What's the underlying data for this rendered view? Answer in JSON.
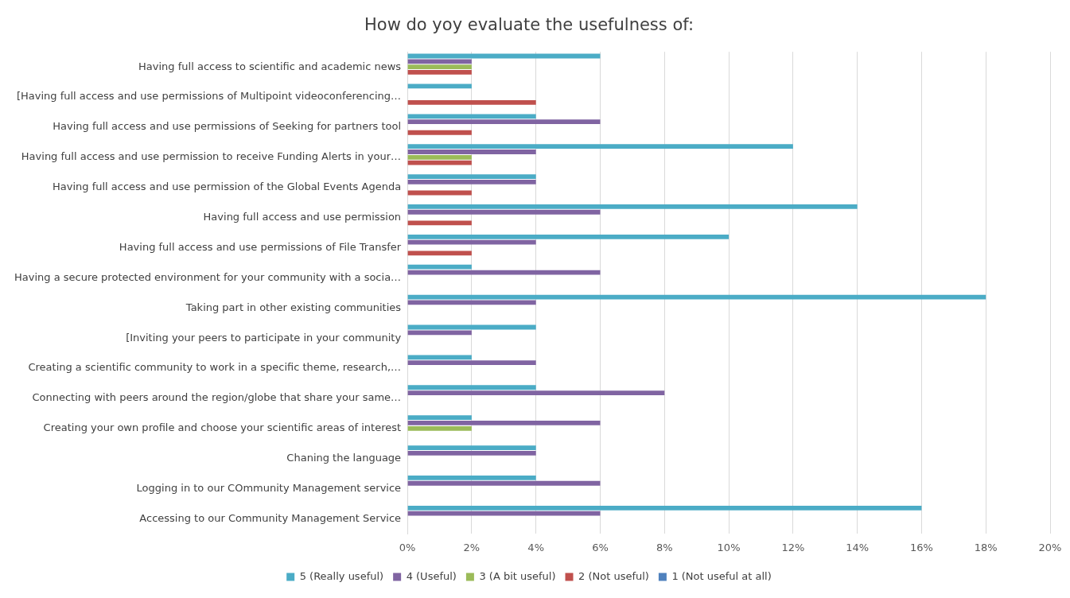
{
  "chart_data": {
    "type": "bar",
    "orientation": "horizontal",
    "title": "How do yoy evaluate the usefulness of:",
    "categories": [
      "Having full access to scientific and academic news",
      "[Having full access and use permissions of Multipoint videoconferencing…",
      "Having full access and use permissions of Seeking for partners tool",
      "Having full access and use permission to receive Funding Alerts in your…",
      "Having full access and use permission of the Global Events Agenda",
      "Having full access and use permission",
      "Having full access and use permissions of File Transfer",
      "Having a secure protected environment for your community with a socia…",
      "Taking part in other existing communities",
      "[Inviting your peers to participate in your community",
      "Creating a scientific community to work in a specific theme, research,…",
      "Connecting with peers around the region/globe that share your same…",
      "Creating your own profile and choose your scientific areas of interest",
      "Chaning the language",
      "Logging in to our COmmunity Management service",
      "Accessing to our Community Management Service"
    ],
    "series": [
      {
        "name": "5 (Really useful)",
        "color": "#4bacc6",
        "values": [
          6,
          2,
          4,
          12,
          4,
          14,
          10,
          2,
          18,
          4,
          2,
          4,
          2,
          4,
          4,
          16
        ]
      },
      {
        "name": "4 (Useful)",
        "color": "#8064a2",
        "values": [
          2,
          0,
          6,
          4,
          4,
          6,
          4,
          6,
          4,
          2,
          4,
          8,
          6,
          4,
          6,
          6
        ]
      },
      {
        "name": "3 (A bit useful)",
        "color": "#9bbb59",
        "values": [
          2,
          0,
          0,
          2,
          0,
          0,
          0,
          0,
          0,
          0,
          0,
          0,
          2,
          0,
          0,
          0
        ]
      },
      {
        "name": "2 (Not useful)",
        "color": "#c0504d",
        "values": [
          2,
          4,
          2,
          2,
          2,
          2,
          2,
          0,
          0,
          0,
          0,
          0,
          0,
          0,
          0,
          0
        ]
      },
      {
        "name": "1 (Not useful at all)",
        "color": "#4f81bd",
        "values": [
          0,
          0,
          0,
          0,
          0,
          0,
          0,
          0,
          0,
          0,
          0,
          0,
          0,
          0,
          0,
          0
        ]
      }
    ],
    "xlim": [
      0,
      20
    ],
    "xticks": [
      {
        "value": 0,
        "label": "0%"
      },
      {
        "value": 2,
        "label": "2%"
      },
      {
        "value": 4,
        "label": "4%"
      },
      {
        "value": 6,
        "label": "6%"
      },
      {
        "value": 8,
        "label": "8%"
      },
      {
        "value": 10,
        "label": "10%"
      },
      {
        "value": 12,
        "label": "12%"
      },
      {
        "value": 14,
        "label": "14%"
      },
      {
        "value": 16,
        "label": "16%"
      },
      {
        "value": 18,
        "label": "18%"
      },
      {
        "value": 20,
        "label": "20%"
      }
    ],
    "grid": "x",
    "legend": "bottom"
  }
}
